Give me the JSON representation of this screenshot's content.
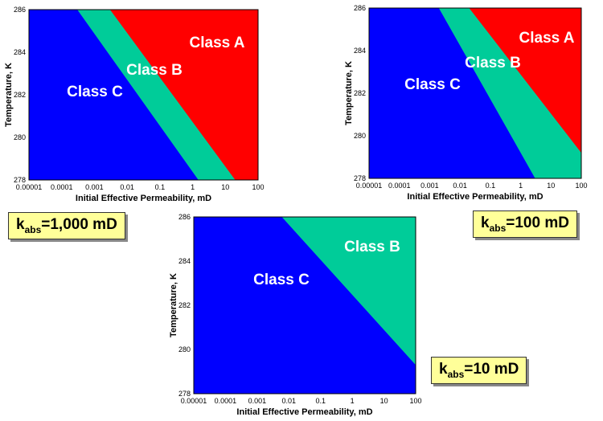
{
  "chart_data": [
    {
      "type": "area",
      "xlabel": "Initial Effective Permeability, mD",
      "ylabel": "Temperature, K",
      "xscale": "log",
      "xlim": [
        1e-05,
        100
      ],
      "ylim": [
        278,
        286
      ],
      "x_tick_labels": [
        "0.00001",
        "0.0001",
        "0.001",
        "0.01",
        "0.1",
        "1",
        "10",
        "100"
      ],
      "y_tick_labels": [
        "278",
        "280",
        "282",
        "284",
        "286"
      ],
      "regions": [
        {
          "name": "Class C",
          "color": "#0000ff"
        },
        {
          "name": "Class B",
          "color": "#00cc99"
        },
        {
          "name": "Class A",
          "color": "#ff0000"
        }
      ],
      "boundaries": [
        {
          "between": "Class C / Class B",
          "points": [
            [
              0.0003,
              286
            ],
            [
              1.5,
              278
            ]
          ]
        },
        {
          "between": "Class B / Class A",
          "points": [
            [
              0.003,
              286
            ],
            [
              20,
              278
            ]
          ]
        }
      ],
      "annotation": {
        "k": "k",
        "sub": "abs",
        "value": "=1,000 mD"
      }
    },
    {
      "type": "area",
      "xlabel": "Initial Effective Permeability, mD",
      "ylabel": "Temperature, K",
      "xscale": "log",
      "xlim": [
        1e-05,
        100
      ],
      "ylim": [
        278,
        286
      ],
      "x_tick_labels": [
        "0.00001",
        "0.0001",
        "0.001",
        "0.01",
        "0.1",
        "1",
        "10",
        "100"
      ],
      "y_tick_labels": [
        "278",
        "280",
        "282",
        "284",
        "286"
      ],
      "regions": [
        {
          "name": "Class C",
          "color": "#0000ff"
        },
        {
          "name": "Class B",
          "color": "#00cc99"
        },
        {
          "name": "Class A",
          "color": "#ff0000"
        }
      ],
      "boundaries": [
        {
          "between": "Class C / Class B",
          "points": [
            [
              0.002,
              286
            ],
            [
              3,
              278
            ]
          ]
        },
        {
          "between": "Class B / Class A",
          "points": [
            [
              0.02,
              286
            ],
            [
              100,
              279.2
            ]
          ]
        }
      ],
      "annotation": {
        "k": "k",
        "sub": "abs",
        "value": "=100 mD"
      }
    },
    {
      "type": "area",
      "xlabel": "Initial Effective Permeability, mD",
      "ylabel": "Temperature, K",
      "xscale": "log",
      "xlim": [
        1e-05,
        100
      ],
      "ylim": [
        278,
        286
      ],
      "x_tick_labels": [
        "0.00001",
        "0.0001",
        "0.001",
        "0.01",
        "0.1",
        "1",
        "10",
        "100"
      ],
      "y_tick_labels": [
        "278",
        "280",
        "282",
        "284",
        "286"
      ],
      "regions": [
        {
          "name": "Class C",
          "color": "#0000ff"
        },
        {
          "name": "Class B",
          "color": "#00cc99"
        }
      ],
      "boundaries": [
        {
          "between": "Class C / Class B",
          "points": [
            [
              0.006,
              286
            ],
            [
              100,
              279.3
            ]
          ]
        }
      ],
      "annotation": {
        "k": "k",
        "sub": "abs",
        "value": "=10 mD"
      }
    }
  ]
}
